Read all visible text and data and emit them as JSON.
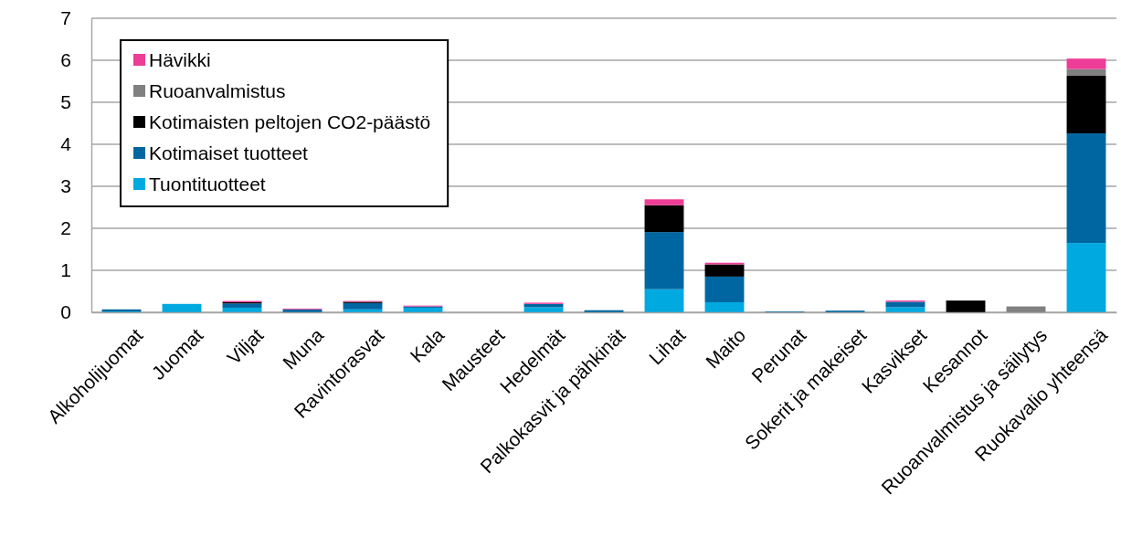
{
  "chart_data": {
    "type": "bar",
    "stacked": true,
    "categories": [
      "Alkoholijuomat",
      "Juomat",
      "Viljat",
      "Muna",
      "Ravintorasvat",
      "Kala",
      "Mausteet",
      "Hedelmät",
      "Palkokasvit ja pähkinät",
      "Lihat",
      "Maito",
      "Perunat",
      "Sokerit ja makeiset",
      "Kasvikset",
      "Kesannot",
      "Ruoanvalmistus ja säilytys",
      "Ruokavalio yhteensä"
    ],
    "series": [
      {
        "name": "Tuontituotteet",
        "color": "#00a9e0",
        "values": [
          0.02,
          0.2,
          0.11,
          null,
          0.07,
          0.11,
          0,
          0.12,
          null,
          0.55,
          0.24,
          0,
          null,
          0.12,
          0,
          0,
          1.65
        ]
      },
      {
        "name": "Kotimaiset tuotteet",
        "color": "#0066a1",
        "values": [
          0.05,
          0,
          0.1,
          0.07,
          0.15,
          0.03,
          0,
          0.08,
          0.05,
          1.36,
          0.61,
          0.02,
          0.04,
          0.13,
          0,
          0,
          2.61
        ]
      },
      {
        "name": "Kotimaisten peltojen CO2-päästö",
        "color": "#000000",
        "values": [
          0,
          0,
          0.03,
          0,
          0.03,
          0,
          0,
          0,
          0,
          0.64,
          0.29,
          0,
          0,
          0,
          0.28,
          0,
          1.37
        ]
      },
      {
        "name": "Ruoanvalmistus",
        "color": "#808080",
        "values": [
          0,
          0,
          0,
          0,
          0,
          0,
          0,
          0,
          0,
          0,
          0,
          0,
          0,
          0,
          0,
          0.14,
          0.16
        ]
      },
      {
        "name": "Hävikki",
        "color": "#ee3d96",
        "values": [
          0,
          0,
          0.03,
          0.02,
          0.02,
          0.02,
          0,
          0.03,
          null,
          0.14,
          0.04,
          null,
          null,
          0.03,
          0,
          0,
          0.25
        ]
      }
    ],
    "ylim": [
      0,
      7
    ],
    "yticks": [
      0,
      1,
      2,
      3,
      4,
      5,
      6,
      7
    ],
    "grid": "y",
    "legend": "top left"
  }
}
